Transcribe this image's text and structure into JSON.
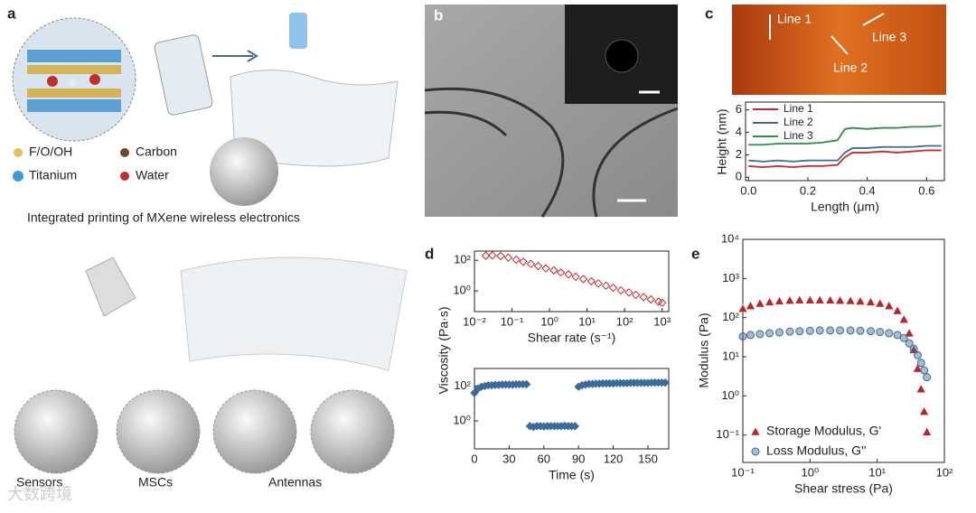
{
  "panels": {
    "a": {
      "label": "a",
      "legend": [
        "F/O/OH",
        "Carbon",
        "Titanium",
        "Water"
      ],
      "caption": "Integrated printing of MXene wireless electronics",
      "applications": [
        "Sensors",
        "MSCs",
        "Antennas"
      ]
    },
    "b": {
      "label": "b"
    },
    "c": {
      "label": "c",
      "image_labels": [
        "Line 1",
        "Line 2",
        "Line 3"
      ]
    },
    "d": {
      "label": "d"
    },
    "e": {
      "label": "e"
    }
  },
  "watermark": "大数跨境",
  "chart_data": [
    {
      "type": "line",
      "xlabel": "Length (μm)",
      "ylabel": "Height (nm)",
      "legend": "upper left",
      "x": [
        0,
        0.05,
        0.1,
        0.15,
        0.2,
        0.25,
        0.3,
        0.325,
        0.35,
        0.4,
        0.45,
        0.5,
        0.55,
        0.6,
        0.65
      ],
      "series": [
        {
          "name": "Line 1",
          "color": "#c8282d",
          "values": [
            1.0,
            0.9,
            1.0,
            0.9,
            1.0,
            1.0,
            1.1,
            1.8,
            2.2,
            2.2,
            2.3,
            2.2,
            2.3,
            2.4,
            2.4
          ]
        },
        {
          "name": "Line 2",
          "color": "#3d6a96",
          "values": [
            1.5,
            1.4,
            1.5,
            1.4,
            1.5,
            1.5,
            1.5,
            2.2,
            2.6,
            2.6,
            2.7,
            2.7,
            2.7,
            2.8,
            2.8
          ]
        },
        {
          "name": "Line 3",
          "color": "#2e8b4a",
          "values": [
            2.9,
            2.9,
            3.0,
            3.0,
            3.0,
            3.1,
            3.3,
            4.3,
            4.4,
            4.3,
            4.4,
            4.4,
            4.5,
            4.5,
            4.6
          ]
        }
      ],
      "xlim": [
        -0.01,
        0.66
      ],
      "ylim": [
        -0.3,
        6.7
      ],
      "xticks": [
        {
          "value": 0,
          "label": "0.0"
        },
        0.2,
        0.4,
        0.6
      ],
      "yticks": [
        0,
        2,
        4,
        6
      ]
    },
    {
      "type": "scatter",
      "xlabel": "Shear rate (s⁻¹)",
      "xlog": true,
      "ylog": true,
      "x": [
        0.02,
        0.03,
        0.05,
        0.08,
        0.13,
        0.2,
        0.32,
        0.5,
        0.8,
        1.3,
        2,
        3.2,
        5,
        8,
        13,
        20,
        32,
        50,
        80,
        130,
        200,
        320,
        500,
        800,
        1000
      ],
      "series": [
        {
          "color": "#c8282d",
          "marker": "diamond-open",
          "values": [
            200,
            210,
            190,
            150,
            110,
            80,
            58,
            42,
            30,
            22,
            16,
            12,
            8.5,
            6,
            4.3,
            3.1,
            2.2,
            1.6,
            1.1,
            0.8,
            0.55,
            0.4,
            0.28,
            0.2,
            0.17
          ]
        }
      ],
      "xlim": [
        0.01,
        1500
      ],
      "ylim": [
        0.045,
        400
      ],
      "xticks": [
        {
          "value": 0.01,
          "label": "10⁻²"
        },
        {
          "value": 0.1,
          "label": "10⁻¹"
        },
        {
          "value": 1,
          "label": "10⁰"
        },
        {
          "value": 10,
          "label": "10¹"
        },
        {
          "value": 100,
          "label": "10²"
        },
        {
          "value": 1000,
          "label": "10³"
        }
      ],
      "yticks": [
        {
          "value": 1,
          "label": "10⁰"
        },
        {
          "value": 100,
          "label": "10²"
        }
      ]
    },
    {
      "type": "scatter",
      "xlabel": "Time (s)",
      "ylabel": "Viscosity (Pa·s)",
      "ylog": true,
      "x": [
        0,
        3,
        6,
        9,
        12,
        15,
        18,
        21,
        24,
        27,
        30,
        33,
        36,
        39,
        42,
        45,
        48,
        51,
        54,
        57,
        60,
        63,
        66,
        69,
        72,
        75,
        78,
        81,
        84,
        87,
        90,
        93,
        96,
        99,
        102,
        105,
        108,
        111,
        114,
        117,
        120,
        123,
        126,
        129,
        132,
        135,
        138,
        141,
        144,
        147,
        150,
        153,
        156,
        159,
        162,
        165
      ],
      "series": [
        {
          "color": "#3d6a96",
          "marker": "diamond",
          "values": [
            40,
            70,
            90,
            100,
            110,
            110,
            115,
            115,
            120,
            120,
            120,
            120,
            125,
            125,
            125,
            125,
            0.5,
            0.45,
            0.5,
            0.5,
            0.48,
            0.5,
            0.5,
            0.5,
            0.5,
            0.5,
            0.52,
            0.5,
            0.5,
            0.5,
            90,
            110,
            120,
            130,
            130,
            135,
            135,
            140,
            140,
            140,
            140,
            145,
            145,
            145,
            145,
            150,
            150,
            150,
            150,
            150,
            150,
            155,
            155,
            155,
            155,
            155
          ]
        }
      ],
      "xlim": [
        0,
        168
      ],
      "ylim": [
        0.025,
        1000
      ],
      "xticks": [
        0,
        30,
        60,
        90,
        120,
        150
      ],
      "yticks": [
        {
          "value": 1,
          "label": "10⁰"
        },
        {
          "value": 100,
          "label": "10²"
        }
      ]
    },
    {
      "type": "scatter",
      "xlabel": "Shear stress (Pa)",
      "ylabel": "Modulus (Pa)",
      "xlog": true,
      "ylog": true,
      "legend": "lower left",
      "x": [
        0.1,
        0.13,
        0.18,
        0.25,
        0.35,
        0.5,
        0.7,
        1,
        1.4,
        2,
        2.8,
        4,
        5.6,
        8,
        11,
        15,
        20,
        25,
        30,
        35,
        40,
        45,
        50,
        55
      ],
      "series": [
        {
          "name": "Storage Modulus, G'",
          "color": "#b8262b",
          "marker": "triangle",
          "values": [
            170,
            200,
            230,
            250,
            265,
            275,
            280,
            280,
            280,
            278,
            275,
            270,
            262,
            250,
            230,
            200,
            150,
            90,
            40,
            15,
            5,
            1.5,
            0.4,
            0.12
          ]
        },
        {
          "name": "Loss Modulus, G''",
          "color": "#3d6a96",
          "marker": "circle-half",
          "values": [
            33,
            36,
            38,
            40,
            42,
            44,
            45,
            46,
            47,
            47,
            47,
            47,
            46,
            45,
            43,
            40,
            36,
            30,
            22,
            16,
            11,
            7,
            4.5,
            3
          ]
        }
      ],
      "xlim": [
        0.1,
        100
      ],
      "ylim": [
        0.02,
        10000
      ],
      "xticks": [
        {
          "value": 0.1,
          "label": "10⁻¹"
        },
        {
          "value": 1,
          "label": "10⁰"
        },
        {
          "value": 10,
          "label": "10¹"
        },
        {
          "value": 100,
          "label": "10²"
        }
      ],
      "yticks": [
        {
          "value": 0.1,
          "label": "10⁻¹"
        },
        {
          "value": 1,
          "label": "10⁰"
        },
        {
          "value": 10,
          "label": "10¹"
        },
        {
          "value": 100,
          "label": "10²"
        },
        {
          "value": 1000,
          "label": "10³"
        },
        {
          "value": 10000,
          "label": "10⁴"
        }
      ]
    }
  ]
}
